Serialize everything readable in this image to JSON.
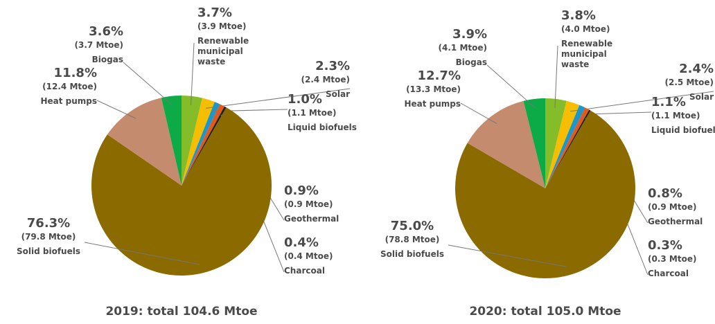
{
  "chart_data": [
    {
      "type": "pie",
      "title": "2019: total 104.6 Mtoe",
      "categories": [
        "Renewable municipal waste",
        "Solar",
        "Liquid biofuels",
        "Geothermal",
        "Charcoal",
        "Solid biofuels",
        "Heat pumps",
        "Biogas"
      ],
      "values": [
        3.7,
        2.3,
        1.0,
        0.9,
        0.4,
        76.3,
        11.8,
        3.6
      ],
      "value_labels": [
        "3.7%",
        "2.3%",
        "1.0%",
        "0.9%",
        "0.4%",
        "76.3%",
        "11.8%",
        "3.6%"
      ],
      "mtoe": [
        3.9,
        2.4,
        1.1,
        0.9,
        0.4,
        79.8,
        12.4,
        3.7
      ],
      "mtoe_labels": [
        "(3.9 Mtoe)",
        "(2.4 Mtoe)",
        "(1.1 Mtoe)",
        "(0.9 Mtoe)",
        "(0.4 Mtoe)",
        "(79.8 Mtoe)",
        "(12.4 Mtoe)",
        "(3.7 Mtoe)"
      ],
      "colors": [
        "#84bc2a",
        "#f5be00",
        "#1e96c8",
        "#e05a1e",
        "#222222",
        "#8b6a00",
        "#c48b6e",
        "#0daa48"
      ]
    },
    {
      "type": "pie",
      "title": "2020: total 105.0 Mtoe",
      "categories": [
        "Renewable municipal waste",
        "Solar",
        "Liquid biofuels",
        "Geothermal",
        "Charcoal",
        "Solid biofuels",
        "Heat pumps",
        "Biogas"
      ],
      "values": [
        3.8,
        2.4,
        1.1,
        0.8,
        0.3,
        75.0,
        12.7,
        3.9
      ],
      "value_labels": [
        "3.8%",
        "2.4%",
        "1.1%",
        "0.8%",
        "0.3%",
        "75.0%",
        "12.7%",
        "3.9%"
      ],
      "mtoe": [
        4.0,
        2.5,
        1.1,
        0.9,
        0.3,
        78.8,
        13.3,
        4.1
      ],
      "mtoe_labels": [
        "(4.0 Mtoe)",
        "(2.5 Mtoe)",
        "(1.1 Mtoe)",
        "(0.9 Mtoe)",
        "(0.3 Mtoe)",
        "(78.8 Mtoe)",
        "(13.3 Mtoe)",
        "(4.1 Mtoe)"
      ],
      "colors": [
        "#84bc2a",
        "#f5be00",
        "#1e96c8",
        "#e05a1e",
        "#222222",
        "#8b6a00",
        "#c48b6e",
        "#0daa48"
      ]
    }
  ]
}
